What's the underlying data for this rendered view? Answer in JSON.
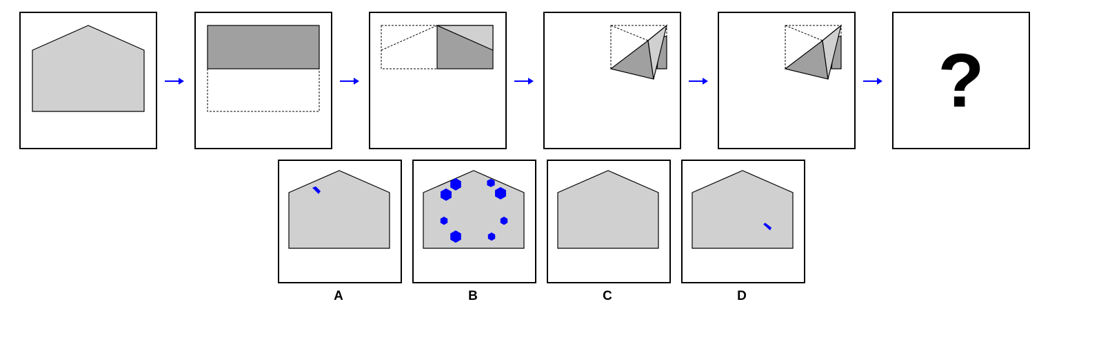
{
  "sequence": {
    "question_mark": "?"
  },
  "options": [
    {
      "label": "A"
    },
    {
      "label": "B"
    },
    {
      "label": "C"
    },
    {
      "label": "D"
    }
  ],
  "colors": {
    "paper": "#d0d0d0",
    "paper_folded": "#a0a0a0",
    "punch_hole": "#0000ff",
    "arrow": "#0000ff",
    "outline": "#000000"
  }
}
